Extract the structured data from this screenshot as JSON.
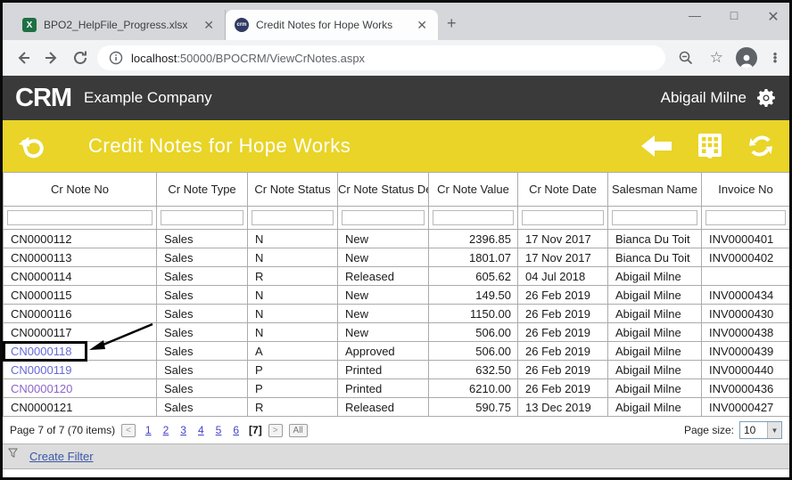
{
  "browser": {
    "tabs": [
      {
        "title": "BPO2_HelpFile_Progress.xlsx",
        "icon": "excel-icon",
        "icon_letter": "X"
      },
      {
        "title": "Credit Notes for Hope Works",
        "icon": "crm-favicon",
        "icon_letter": "crm"
      }
    ],
    "url_origin": "localhost",
    "url_rest": ":50000/BPOCRM/ViewCrNotes.aspx"
  },
  "app_header": {
    "logo": "CRM",
    "company": "Example Company",
    "user": "Abigail Milne"
  },
  "toolbar": {
    "title": "Credit Notes for Hope Works"
  },
  "table": {
    "columns": [
      {
        "label": "Cr Note No"
      },
      {
        "label": "Cr Note Type"
      },
      {
        "label": "Cr Note Status"
      },
      {
        "label": "Cr Note Status Desc"
      },
      {
        "label": "Cr Note Value"
      },
      {
        "label": "Cr Note Date"
      },
      {
        "label": "Salesman Name"
      },
      {
        "label": "Invoice No"
      }
    ],
    "rows": [
      {
        "no": "CN0000112",
        "type": "Sales",
        "status": "N",
        "status_desc": "New",
        "value": "2396.85",
        "date": "17 Nov 2017",
        "salesman": "Bianca Du Toit",
        "invoice": "INV0000401",
        "link": "none"
      },
      {
        "no": "CN0000113",
        "type": "Sales",
        "status": "N",
        "status_desc": "New",
        "value": "1801.07",
        "date": "17 Nov 2017",
        "salesman": "Bianca Du Toit",
        "invoice": "INV0000402",
        "link": "none"
      },
      {
        "no": "CN0000114",
        "type": "Sales",
        "status": "R",
        "status_desc": "Released",
        "value": "605.62",
        "date": "04 Jul 2018",
        "salesman": "Abigail Milne",
        "invoice": "",
        "link": "none"
      },
      {
        "no": "CN0000115",
        "type": "Sales",
        "status": "N",
        "status_desc": "New",
        "value": "149.50",
        "date": "26 Feb 2019",
        "salesman": "Abigail Milne",
        "invoice": "INV0000434",
        "link": "none"
      },
      {
        "no": "CN0000116",
        "type": "Sales",
        "status": "N",
        "status_desc": "New",
        "value": "1150.00",
        "date": "26 Feb 2019",
        "salesman": "Abigail Milne",
        "invoice": "INV0000430",
        "link": "none"
      },
      {
        "no": "CN0000117",
        "type": "Sales",
        "status": "N",
        "status_desc": "New",
        "value": "506.00",
        "date": "26 Feb 2019",
        "salesman": "Abigail Milne",
        "invoice": "INV0000438",
        "link": "none"
      },
      {
        "no": "CN0000118",
        "type": "Sales",
        "status": "A",
        "status_desc": "Approved",
        "value": "506.00",
        "date": "26 Feb 2019",
        "salesman": "Abigail Milne",
        "invoice": "INV0000439",
        "link": "blue",
        "annotated": true
      },
      {
        "no": "CN0000119",
        "type": "Sales",
        "status": "P",
        "status_desc": "Printed",
        "value": "632.50",
        "date": "26 Feb 2019",
        "salesman": "Abigail Milne",
        "invoice": "INV0000440",
        "link": "blue"
      },
      {
        "no": "CN0000120",
        "type": "Sales",
        "status": "P",
        "status_desc": "Printed",
        "value": "6210.00",
        "date": "26 Feb 2019",
        "salesman": "Abigail Milne",
        "invoice": "INV0000436",
        "link": "purple"
      },
      {
        "no": "CN0000121",
        "type": "Sales",
        "status": "R",
        "status_desc": "Released",
        "value": "590.75",
        "date": "13 Dec 2019",
        "salesman": "Abigail Milne",
        "invoice": "INV0000427",
        "link": "none"
      }
    ]
  },
  "pager": {
    "summary": "Page 7 of 7 (70 items)",
    "prev_label": "<",
    "pages": [
      "1",
      "2",
      "3",
      "4",
      "5",
      "6"
    ],
    "current": "[7]",
    "next_label": ">",
    "all_label": "All",
    "page_size_label": "Page size:",
    "page_size_value": "10"
  },
  "filter_bar": {
    "create_filter": "Create Filter"
  },
  "colors": {
    "accent_yellow": "#e9d427",
    "header_dark": "#3a3a3a",
    "link_blue": "#6668d8",
    "link_visited": "#8d64c8",
    "pager_link": "#4343c8"
  }
}
